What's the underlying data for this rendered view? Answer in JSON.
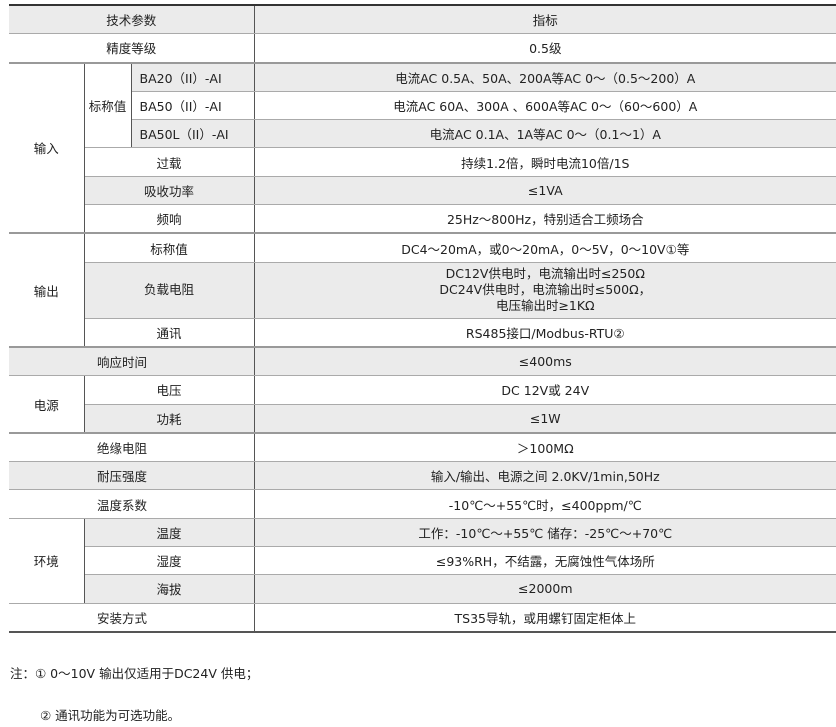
{
  "header": {
    "param": "技术参数",
    "spec": "指标"
  },
  "accuracy": {
    "label": "精度等级",
    "value": "0.5级"
  },
  "input": {
    "group": "输入",
    "nominal": "标称值",
    "models": [
      {
        "model": "BA20（II）-AI",
        "value": "电流AC 0.5A、50A、200A等AC 0～（0.5～200）A"
      },
      {
        "model": "BA50（II）-AI",
        "value": "电流AC 60A、300A 、600A等AC 0～（60～600）A"
      },
      {
        "model": "BA50L（II）-AI",
        "value": "电流AC 0.1A、1A等AC 0～（0.1～1）A"
      }
    ],
    "overload": {
      "label": "过载",
      "value": "持续1.2倍，瞬时电流10倍/1S"
    },
    "power": {
      "label": "吸收功率",
      "value": "≤1VA"
    },
    "freq": {
      "label": "频响",
      "value": "25Hz～800Hz，特别适合工频场合"
    }
  },
  "output": {
    "group": "输出",
    "nominal": {
      "label": "标称值",
      "value": "DC4～20mA，或0～20mA，0～5V，0～10V①等"
    },
    "load": {
      "label": "负载电阻",
      "lines": [
        "DC12V供电时，电流输出时≤250Ω",
        "DC24V供电时，电流输出时≤500Ω，",
        "电压输出时≥1KΩ"
      ]
    },
    "comm": {
      "label": "通讯",
      "value": "RS485接口/Modbus-RTU②"
    }
  },
  "response": {
    "label": "响应时间",
    "value": "≤400ms"
  },
  "supply": {
    "group": "电源",
    "voltage": {
      "label": "电压",
      "value": "DC 12V或 24V"
    },
    "consumption": {
      "label": "功耗",
      "value": "≤1W"
    }
  },
  "insulation": {
    "label": "绝缘电阻",
    "value": "＞100MΩ"
  },
  "withstand": {
    "label": "耐压强度",
    "value": "输入/输出、电源之间 2.0KV/1min,50Hz"
  },
  "tempcoef": {
    "label": "温度系数",
    "value": "-10℃～+55℃时，≤400ppm/℃"
  },
  "env": {
    "group": "环境",
    "temp": {
      "label": "温度",
      "value": "工作：-10℃～+55℃ 储存：-25℃～+70℃"
    },
    "humidity": {
      "label": "湿度",
      "value": "≤93%RH，不结露，无腐蚀性气体场所"
    },
    "altitude": {
      "label": "海拔",
      "value": "≤2000m"
    }
  },
  "mounting": {
    "label": "安装方式",
    "value": "TS35导轨，或用螺钉固定柜体上"
  },
  "notes": [
    "注：① 0～10V 输出仅适用于DC24V 供电；",
    "② 通讯功能为可选功能。"
  ]
}
